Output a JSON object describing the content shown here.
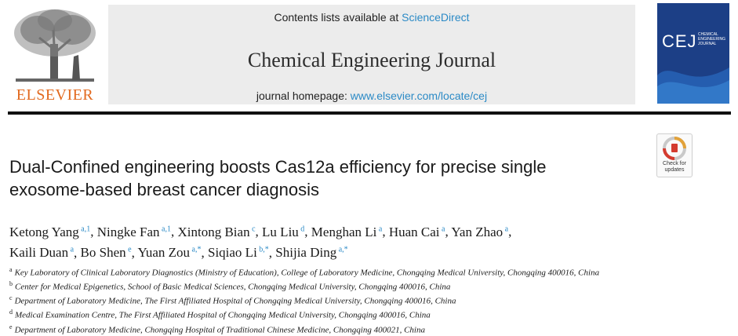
{
  "header": {
    "contents_prefix": "Contents lists available at ",
    "contents_link": "ScienceDirect",
    "journal_title": "Chemical Engineering Journal",
    "homepage_prefix": "journal homepage: ",
    "homepage_link": "www.elsevier.com/locate/cej"
  },
  "publisher": {
    "name": "ELSEVIER"
  },
  "cover": {
    "title": "CEJ",
    "subtitle": "CHEMICAL ENGINEERING JOURNAL"
  },
  "badge": {
    "line1": "Check for",
    "line2": "updates"
  },
  "article": {
    "title_line1": "Dual-Confined engineering boosts Cas12a efficiency for precise single",
    "title_line2": "exosome-based breast cancer diagnosis"
  },
  "authors": [
    {
      "name": "Ketong Yang",
      "marks": "a,1"
    },
    {
      "name": "Ningke Fan",
      "marks": "a,1"
    },
    {
      "name": "Xintong Bian",
      "marks": "c"
    },
    {
      "name": "Lu Liu",
      "marks": "d"
    },
    {
      "name": "Menghan Li",
      "marks": "a"
    },
    {
      "name": "Huan Cai",
      "marks": "a"
    },
    {
      "name": "Yan Zhao",
      "marks": "a"
    },
    {
      "name": "Kaili Duan",
      "marks": "a"
    },
    {
      "name": "Bo Shen",
      "marks": "e"
    },
    {
      "name": "Yuan Zou",
      "marks": "a,*"
    },
    {
      "name": "Siqiao Li",
      "marks": "b,*"
    },
    {
      "name": "Shijia Ding",
      "marks": "a,*"
    }
  ],
  "affiliations": [
    {
      "mark": "a",
      "text": "Key Laboratory of Clinical Laboratory Diagnostics (Ministry of Education), College of Laboratory Medicine, Chongqing Medical University, Chongqing 400016, China"
    },
    {
      "mark": "b",
      "text": "Center for Medical Epigenetics, School of Basic Medical Sciences, Chongqing Medical University, Chongqing 400016, China"
    },
    {
      "mark": "c",
      "text": "Department of Laboratory Medicine, The First Affiliated Hospital of Chongqing Medical University, Chongqing 400016, China"
    },
    {
      "mark": "d",
      "text": "Medical Examination Centre, The First Affiliated Hospital of Chongqing Medical University, Chongqing 400016, China"
    },
    {
      "mark": "e",
      "text": "Department of Laboratory Medicine, Chongqing Hospital of Traditional Chinese Medicine, Chongqing 400021, China"
    }
  ]
}
